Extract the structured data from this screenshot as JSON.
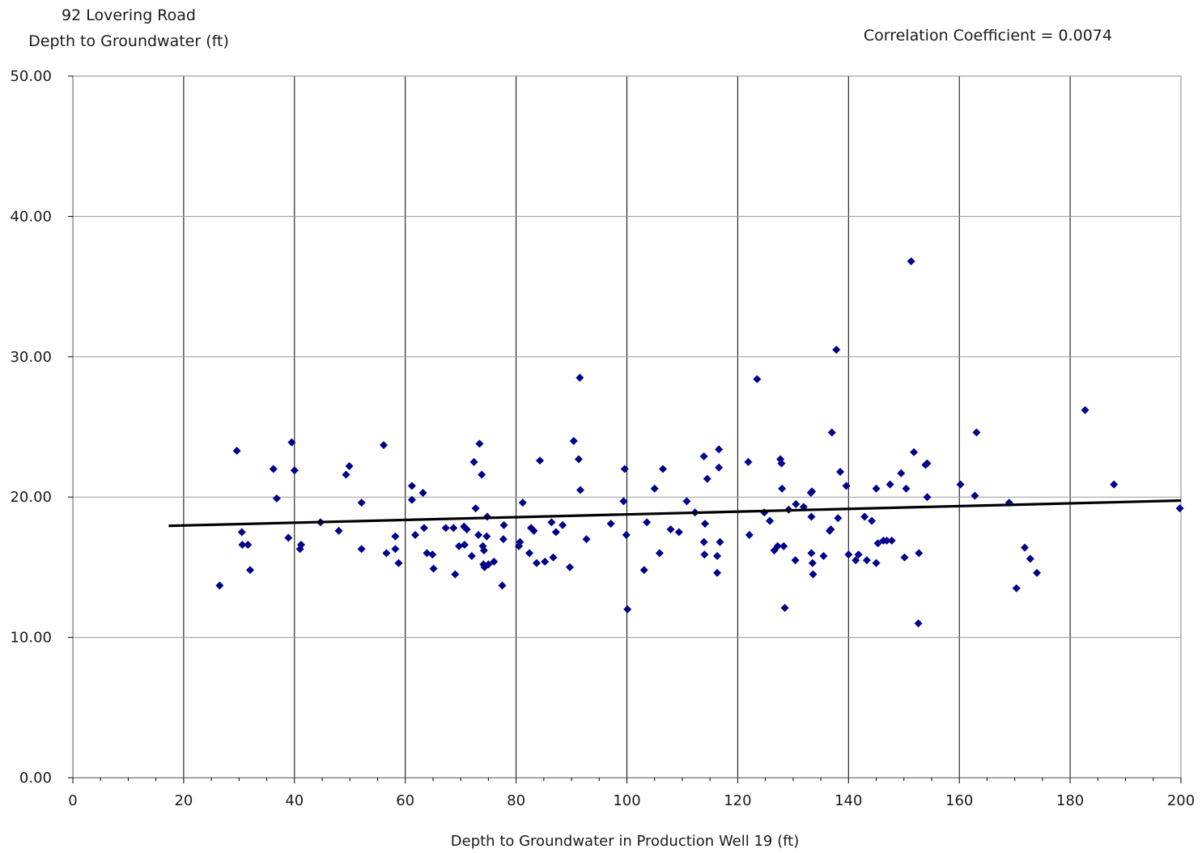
{
  "chart_data": {
    "type": "scatter",
    "title_line1": "92 Lovering Road",
    "title_line2": "Depth to Groundwater (ft)",
    "annotation": "Correlation Coefficient = 0.0074",
    "xlabel": "Depth to Groundwater in Production Well 19 (ft)",
    "ylabel": "",
    "xlim": [
      0,
      200
    ],
    "ylim": [
      0,
      50
    ],
    "x_ticks": [
      0,
      20,
      40,
      60,
      80,
      100,
      120,
      140,
      160,
      180,
      200
    ],
    "x_tick_labels": [
      "0",
      "20",
      "40",
      "60",
      "80",
      "100",
      "120",
      "140",
      "160",
      "180",
      "200"
    ],
    "y_ticks": [
      0,
      10,
      20,
      30,
      40,
      50
    ],
    "y_tick_labels": [
      "0.00",
      "10.00",
      "20.00",
      "30.00",
      "40.00",
      "50.00"
    ],
    "grid": true,
    "legend": "none",
    "marker_color": "#00008b",
    "trendline_color": "#000000",
    "trendline": {
      "x": [
        17.3,
        200
      ],
      "y": [
        17.95,
        19.75
      ]
    },
    "points": [
      [
        26.5,
        13.7
      ],
      [
        29.6,
        23.3
      ],
      [
        30.5,
        17.5
      ],
      [
        30.6,
        16.6
      ],
      [
        31.6,
        16.6
      ],
      [
        32,
        14.8
      ],
      [
        36.2,
        22
      ],
      [
        36.8,
        19.9
      ],
      [
        38.9,
        17.1
      ],
      [
        39.5,
        23.9
      ],
      [
        40,
        21.9
      ],
      [
        41,
        16.3
      ],
      [
        41.2,
        16.6
      ],
      [
        44.7,
        18.2
      ],
      [
        48,
        17.6
      ],
      [
        49.3,
        21.6
      ],
      [
        49.9,
        22.2
      ],
      [
        52.1,
        19.6
      ],
      [
        52.1,
        16.3
      ],
      [
        56.1,
        23.7
      ],
      [
        56.6,
        16
      ],
      [
        58.2,
        16.3
      ],
      [
        58.2,
        17.2
      ],
      [
        58.8,
        15.3
      ],
      [
        61.2,
        20.8
      ],
      [
        61.2,
        19.8
      ],
      [
        61.8,
        17.3
      ],
      [
        63.2,
        20.3
      ],
      [
        63.4,
        17.8
      ],
      [
        63.9,
        16
      ],
      [
        64.9,
        15.9
      ],
      [
        65.1,
        14.9
      ],
      [
        67.3,
        17.8
      ],
      [
        68.7,
        17.8
      ],
      [
        69,
        14.5
      ],
      [
        69.7,
        16.5
      ],
      [
        70.6,
        17.9
      ],
      [
        70.7,
        16.6
      ],
      [
        71.1,
        17.7
      ],
      [
        72,
        15.8
      ],
      [
        72.4,
        22.5
      ],
      [
        72.7,
        19.2
      ],
      [
        73.2,
        17.3
      ],
      [
        73.4,
        23.8
      ],
      [
        73.8,
        21.6
      ],
      [
        74,
        16.5
      ],
      [
        74.1,
        15.2
      ],
      [
        74.2,
        16.2
      ],
      [
        74.3,
        15
      ],
      [
        74.7,
        17.2
      ],
      [
        74.8,
        18.6
      ],
      [
        75,
        15.2
      ],
      [
        76,
        15.4
      ],
      [
        77.5,
        13.7
      ],
      [
        77.7,
        17
      ],
      [
        77.8,
        18
      ],
      [
        80.5,
        16.5
      ],
      [
        80.7,
        16.8
      ],
      [
        81.2,
        19.6
      ],
      [
        82.4,
        16
      ],
      [
        82.7,
        17.8
      ],
      [
        83.2,
        17.6
      ],
      [
        83.7,
        15.3
      ],
      [
        84.3,
        22.6
      ],
      [
        85.2,
        15.4
      ],
      [
        86.4,
        18.2
      ],
      [
        86.7,
        15.7
      ],
      [
        87.2,
        17.5
      ],
      [
        88.4,
        18
      ],
      [
        89.7,
        15
      ],
      [
        90.4,
        24
      ],
      [
        91.3,
        22.7
      ],
      [
        91.5,
        28.5
      ],
      [
        91.6,
        20.5
      ],
      [
        92.7,
        17
      ],
      [
        97.1,
        18.1
      ],
      [
        99.4,
        19.7
      ],
      [
        99.6,
        22
      ],
      [
        99.9,
        17.3
      ],
      [
        100.1,
        12
      ],
      [
        103.1,
        14.8
      ],
      [
        103.6,
        18.2
      ],
      [
        105,
        20.6
      ],
      [
        105.9,
        16
      ],
      [
        106.5,
        22
      ],
      [
        107.9,
        17.7
      ],
      [
        109.4,
        17.5
      ],
      [
        110.8,
        19.7
      ],
      [
        112.3,
        18.9
      ],
      [
        113.9,
        22.9
      ],
      [
        113.9,
        16.8
      ],
      [
        114,
        15.9
      ],
      [
        114.1,
        18.1
      ],
      [
        114.5,
        21.3
      ],
      [
        116.3,
        14.6
      ],
      [
        116.3,
        15.8
      ],
      [
        116.6,
        22.1
      ],
      [
        116.6,
        23.4
      ],
      [
        116.8,
        16.8
      ],
      [
        121.9,
        22.5
      ],
      [
        122.1,
        17.3
      ],
      [
        123.5,
        28.4
      ],
      [
        124.8,
        18.9
      ],
      [
        125.8,
        18.3
      ],
      [
        126.6,
        16.2
      ],
      [
        127.2,
        16.5
      ],
      [
        127.7,
        22.7
      ],
      [
        127.9,
        22.4
      ],
      [
        128,
        20.6
      ],
      [
        128.3,
        16.5
      ],
      [
        128.5,
        12.1
      ],
      [
        129.2,
        19.1
      ],
      [
        130.4,
        15.5
      ],
      [
        130.5,
        19.5
      ],
      [
        131.9,
        19.3
      ],
      [
        133.2,
        20.3
      ],
      [
        133.3,
        18.6
      ],
      [
        133.3,
        16
      ],
      [
        133.4,
        20.4
      ],
      [
        133.5,
        15.3
      ],
      [
        133.6,
        14.5
      ],
      [
        135.5,
        15.8
      ],
      [
        136.6,
        17.6
      ],
      [
        136.8,
        17.7
      ],
      [
        137,
        24.6
      ],
      [
        137.8,
        30.5
      ],
      [
        138.1,
        18.5
      ],
      [
        138.5,
        21.8
      ],
      [
        139.6,
        20.8
      ],
      [
        140,
        15.9
      ],
      [
        141.3,
        15.5
      ],
      [
        141.8,
        15.9
      ],
      [
        142.9,
        18.6
      ],
      [
        143.3,
        15.5
      ],
      [
        144.2,
        18.3
      ],
      [
        145,
        15.3
      ],
      [
        145,
        20.6
      ],
      [
        145.3,
        16.7
      ],
      [
        146.3,
        16.9
      ],
      [
        146.9,
        16.9
      ],
      [
        147.5,
        20.9
      ],
      [
        147.8,
        16.9
      ],
      [
        149.5,
        21.7
      ],
      [
        150.1,
        15.7
      ],
      [
        150.4,
        20.6
      ],
      [
        151.3,
        36.8
      ],
      [
        151.8,
        23.2
      ],
      [
        152.6,
        11
      ],
      [
        152.7,
        16
      ],
      [
        153.9,
        22.3
      ],
      [
        154.2,
        22.4
      ],
      [
        154.2,
        20
      ],
      [
        160.2,
        20.9
      ],
      [
        162.8,
        20.1
      ],
      [
        163.1,
        24.6
      ],
      [
        169,
        19.6
      ],
      [
        170.3,
        13.5
      ],
      [
        171.8,
        16.4
      ],
      [
        172.8,
        15.6
      ],
      [
        174,
        14.6
      ],
      [
        182.7,
        26.2
      ],
      [
        187.9,
        20.9
      ],
      [
        199.8,
        19.2
      ]
    ]
  }
}
